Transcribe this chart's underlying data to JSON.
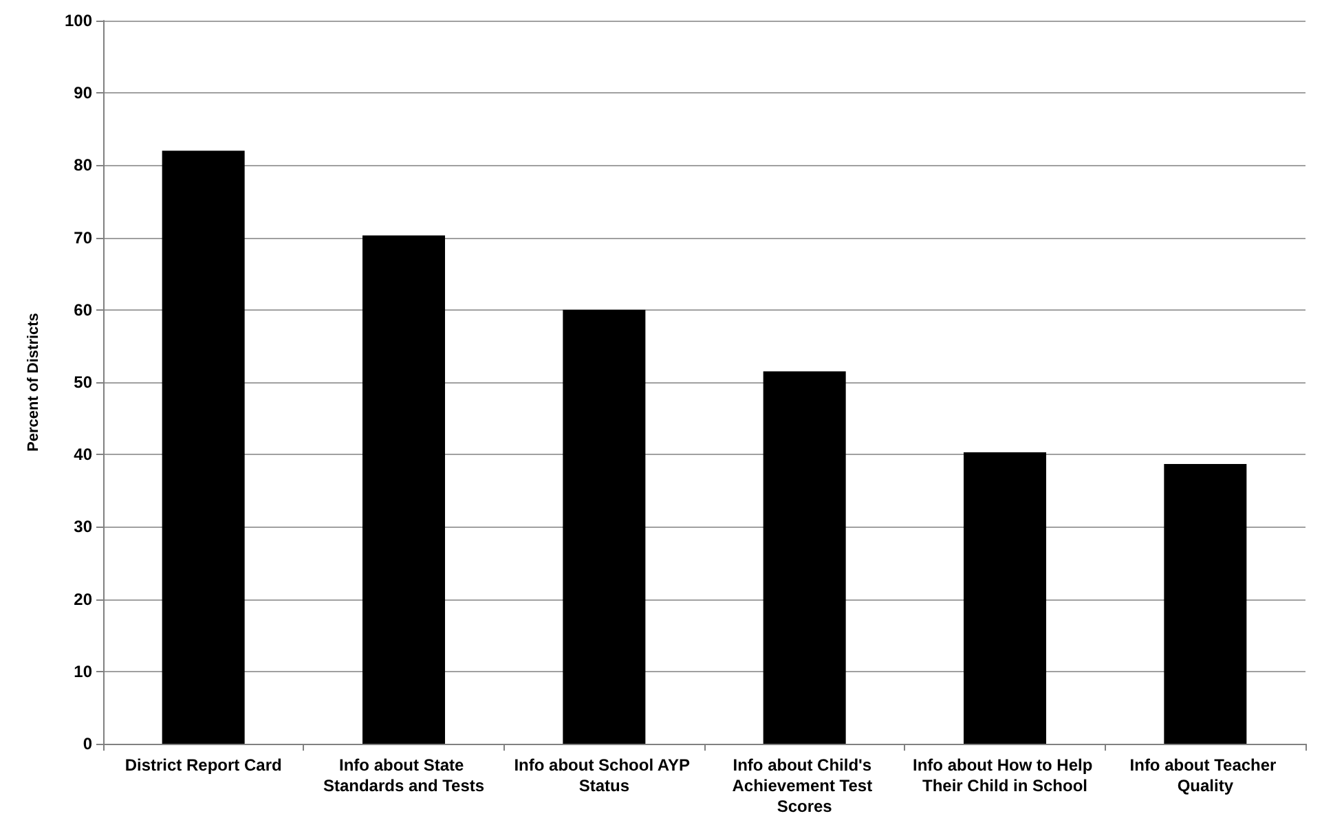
{
  "chart_data": {
    "type": "bar",
    "ylabel": "Percent of Districts",
    "categories": [
      "District Report Card",
      "Info about State Standards and Tests",
      "Info about School AYP Status",
      "Info about Child's Achievement Test Scores",
      "Info about How to Help Their Child in School",
      "Info about Teacher Quality"
    ],
    "values": [
      82,
      70.3,
      60,
      51.5,
      40.3,
      38.7
    ],
    "color": "#000000",
    "ylim": [
      0,
      100
    ],
    "yticks": [
      0,
      10,
      20,
      30,
      40,
      50,
      60,
      70,
      80,
      90,
      100
    ],
    "grid": "y"
  }
}
